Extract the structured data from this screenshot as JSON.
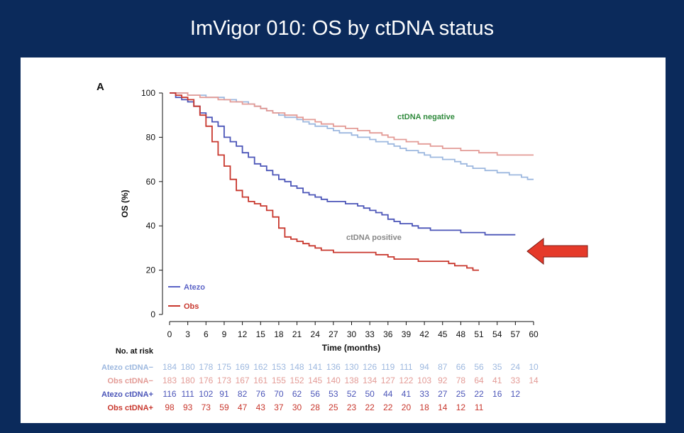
{
  "slide": {
    "title": "ImVigor 010: OS by ctDNA status"
  },
  "chart_data": {
    "type": "line",
    "panel_label": "A",
    "xlabel": "Time (months)",
    "ylabel": "OS (%)",
    "xlim": [
      0,
      60
    ],
    "ylim": [
      0,
      100
    ],
    "x_ticks": [
      0,
      3,
      6,
      9,
      12,
      15,
      18,
      21,
      24,
      27,
      30,
      33,
      36,
      39,
      42,
      45,
      48,
      51,
      54,
      57,
      60
    ],
    "y_ticks": [
      0,
      20,
      40,
      60,
      80,
      100
    ],
    "annotations": {
      "negative": "ctDNA negative",
      "positive": "ctDNA positive"
    },
    "legend": {
      "position": "bottom-left",
      "items": [
        {
          "label": "Atezo",
          "color": "#5b63c6"
        },
        {
          "label": "Obs",
          "color": "#c8372d"
        }
      ]
    },
    "series": [
      {
        "key": "atezo_neg",
        "color": "#9db8df",
        "x": [
          0,
          1,
          2,
          3,
          4,
          5,
          6,
          7,
          8,
          9,
          10,
          11,
          12,
          13,
          14,
          15,
          16,
          17,
          18,
          19,
          20,
          21,
          22,
          23,
          24,
          25,
          26,
          27,
          28,
          29,
          30,
          31,
          32,
          33,
          34,
          35,
          36,
          37,
          38,
          39,
          40,
          41,
          42,
          43,
          44,
          45,
          46,
          47,
          48,
          49,
          50,
          51,
          52,
          53,
          54,
          55,
          56,
          57,
          58,
          59,
          60
        ],
        "y": [
          100,
          100,
          100,
          99,
          99,
          99,
          98,
          98,
          98,
          97,
          97,
          96,
          96,
          95,
          94,
          93,
          92,
          91,
          90,
          89,
          89,
          88,
          87,
          86,
          85,
          85,
          84,
          83,
          82,
          82,
          81,
          80,
          80,
          79,
          78,
          78,
          77,
          76,
          75,
          74,
          74,
          73,
          72,
          71,
          71,
          70,
          70,
          69,
          68,
          67,
          66,
          66,
          65,
          65,
          64,
          64,
          63,
          63,
          62,
          61,
          61
        ]
      },
      {
        "key": "obs_neg",
        "color": "#e39b96",
        "x": [
          0,
          1,
          2,
          3,
          4,
          5,
          6,
          7,
          8,
          9,
          10,
          11,
          12,
          13,
          14,
          15,
          16,
          17,
          18,
          19,
          20,
          21,
          22,
          23,
          24,
          25,
          26,
          27,
          28,
          29,
          30,
          31,
          32,
          33,
          34,
          35,
          36,
          37,
          38,
          39,
          40,
          41,
          42,
          43,
          44,
          45,
          46,
          47,
          48,
          49,
          50,
          51,
          52,
          53,
          54,
          55,
          56,
          57,
          58,
          59,
          60
        ],
        "y": [
          100,
          100,
          100,
          99,
          99,
          98,
          98,
          98,
          97,
          97,
          96,
          96,
          95,
          95,
          94,
          93,
          92,
          91,
          91,
          90,
          90,
          89,
          88,
          88,
          87,
          86,
          86,
          85,
          85,
          84,
          84,
          83,
          83,
          82,
          82,
          81,
          80,
          79,
          79,
          78,
          78,
          77,
          77,
          76,
          76,
          75,
          75,
          75,
          74,
          74,
          74,
          73,
          73,
          73,
          72,
          72,
          72,
          72,
          72,
          72,
          72
        ]
      },
      {
        "key": "atezo_pos",
        "color": "#4b55b8",
        "x": [
          0,
          1,
          2,
          3,
          4,
          5,
          6,
          7,
          8,
          9,
          10,
          11,
          12,
          13,
          14,
          15,
          16,
          17,
          18,
          19,
          20,
          21,
          22,
          23,
          24,
          25,
          26,
          27,
          28,
          29,
          30,
          31,
          32,
          33,
          34,
          35,
          36,
          37,
          38,
          39,
          40,
          41,
          42,
          43,
          44,
          45,
          46,
          47,
          48,
          49,
          50,
          51,
          52,
          53,
          54,
          55,
          56,
          57
        ],
        "y": [
          100,
          98,
          97,
          96,
          94,
          91,
          89,
          87,
          85,
          80,
          78,
          76,
          73,
          71,
          68,
          67,
          65,
          63,
          61,
          60,
          58,
          57,
          55,
          54,
          53,
          52,
          51,
          51,
          51,
          50,
          50,
          49,
          48,
          47,
          46,
          45,
          43,
          42,
          41,
          41,
          40,
          39,
          39,
          38,
          38,
          38,
          38,
          38,
          37,
          37,
          37,
          37,
          36,
          36,
          36,
          36,
          36,
          36
        ]
      },
      {
        "key": "obs_pos",
        "color": "#c8372d",
        "x": [
          0,
          1,
          2,
          3,
          4,
          5,
          6,
          7,
          8,
          9,
          10,
          11,
          12,
          13,
          14,
          15,
          16,
          17,
          18,
          19,
          20,
          21,
          22,
          23,
          24,
          25,
          26,
          27,
          28,
          29,
          30,
          31,
          32,
          33,
          34,
          35,
          36,
          37,
          38,
          39,
          40,
          41,
          42,
          43,
          44,
          45,
          46,
          47,
          48,
          49,
          50,
          51
        ],
        "y": [
          100,
          99,
          98,
          97,
          94,
          90,
          85,
          78,
          72,
          67,
          61,
          56,
          53,
          51,
          50,
          49,
          47,
          44,
          39,
          35,
          34,
          33,
          32,
          31,
          30,
          29,
          29,
          28,
          28,
          28,
          28,
          28,
          28,
          28,
          27,
          27,
          26,
          25,
          25,
          25,
          25,
          24,
          24,
          24,
          24,
          24,
          23,
          22,
          22,
          21,
          20,
          20
        ]
      }
    ],
    "risk_table": {
      "header": "No. at risk",
      "rows": [
        {
          "label": "Atezo ctDNA−",
          "color": "#9db8df",
          "values": [
            "184",
            "180",
            "178",
            "175",
            "169",
            "162",
            "153",
            "148",
            "141",
            "136",
            "130",
            "126",
            "119",
            "111",
            "94",
            "87",
            "66",
            "56",
            "35",
            "24",
            "10"
          ]
        },
        {
          "label": "Obs ctDNA−",
          "color": "#e39b96",
          "values": [
            "183",
            "180",
            "176",
            "173",
            "167",
            "161",
            "155",
            "152",
            "145",
            "140",
            "138",
            "134",
            "127",
            "122",
            "103",
            "92",
            "78",
            "64",
            "41",
            "33",
            "14"
          ]
        },
        {
          "label": "Atezo ctDNA+",
          "color": "#4b55b8",
          "values": [
            "116",
            "111",
            "102",
            "91",
            "82",
            "76",
            "70",
            "62",
            "56",
            "53",
            "52",
            "50",
            "44",
            "41",
            "33",
            "27",
            "25",
            "22",
            "16",
            "12"
          ]
        },
        {
          "label": "Obs ctDNA+",
          "color": "#c8372d",
          "values": [
            "98",
            "93",
            "73",
            "59",
            "47",
            "43",
            "37",
            "30",
            "28",
            "25",
            "23",
            "22",
            "22",
            "20",
            "18",
            "14",
            "12",
            "11"
          ]
        }
      ]
    }
  },
  "colors": {
    "background": "#0b2a5b",
    "panel": "#ffffff",
    "arrow": "#e53a2a",
    "annotation_negative": "#2f8a3c",
    "annotation_positive": "#888888"
  }
}
